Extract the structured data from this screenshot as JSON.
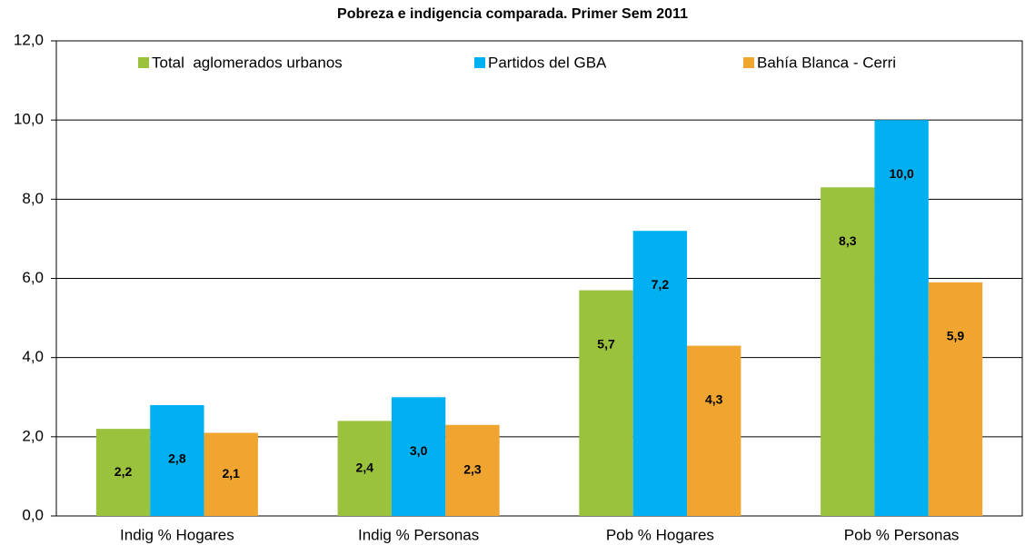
{
  "chart_data": {
    "type": "bar",
    "title": "Pobreza e indigencia comparada. Primer Sem 2011",
    "categories": [
      "Indig % Hogares",
      "Indig % Personas",
      "Pob % Hogares",
      "Pob % Personas"
    ],
    "series": [
      {
        "name": "Total  aglomerados urbanos",
        "color": "#9bc23c",
        "values": [
          2.2,
          2.4,
          5.7,
          8.3
        ],
        "value_labels": [
          "2,2",
          "2,4",
          "5,7",
          "8,3"
        ]
      },
      {
        "name": "Partidos del GBA",
        "color": "#00b0f0",
        "values": [
          2.8,
          3.0,
          7.2,
          10.0
        ],
        "value_labels": [
          "2,8",
          "3,0",
          "7,2",
          "10,0"
        ]
      },
      {
        "name": "Bahía Blanca - Cerri",
        "color": "#f0a530",
        "values": [
          2.1,
          2.3,
          4.3,
          5.9
        ],
        "value_labels": [
          "2,1",
          "2,3",
          "4,3",
          "5,9"
        ]
      }
    ],
    "ylim": [
      0,
      12
    ],
    "yticks": [
      {
        "value": 0,
        "label": "0,0"
      },
      {
        "value": 2,
        "label": "2,0"
      },
      {
        "value": 4,
        "label": "4,0"
      },
      {
        "value": 6,
        "label": "6,0"
      },
      {
        "value": 8,
        "label": "8,0"
      },
      {
        "value": 10,
        "label": "10,0"
      },
      {
        "value": 12,
        "label": "12,0"
      }
    ],
    "grid": true,
    "legend": "top"
  }
}
